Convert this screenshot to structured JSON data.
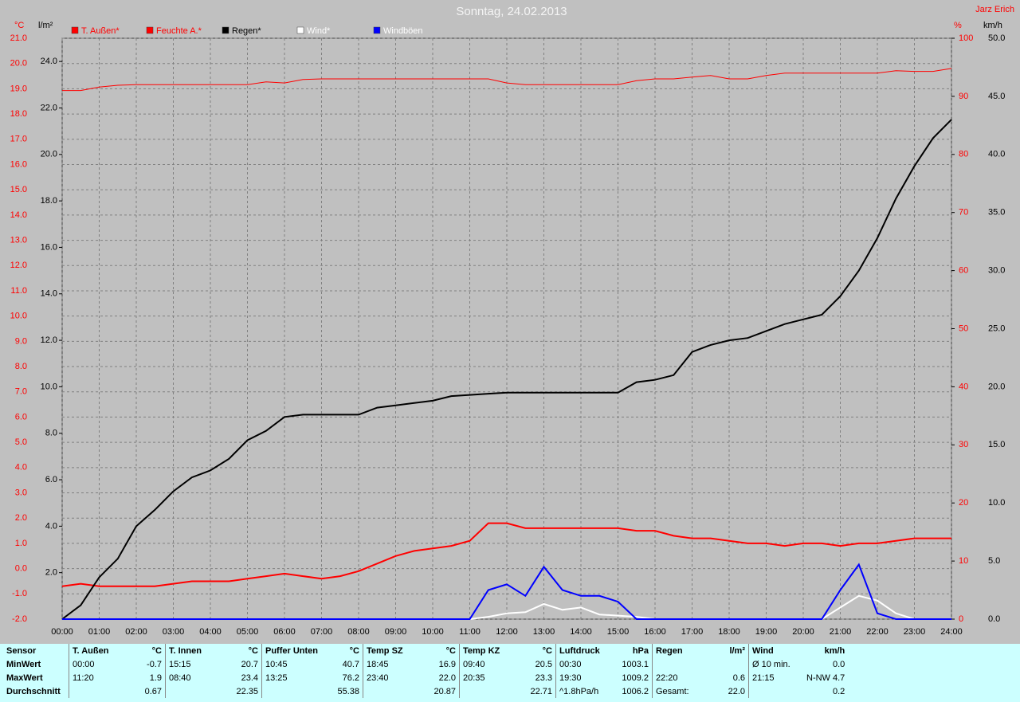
{
  "chart_data": {
    "type": "line",
    "title": "Sonntag, 24.02.2013",
    "author": "Jarz Erich",
    "ylabel": "°C",
    "y3label": "l/m²",
    "y2label": "%",
    "y4label": "km/h",
    "x": [
      0,
      0.5,
      1,
      1.5,
      2,
      2.5,
      3,
      3.5,
      4,
      4.5,
      5,
      5.5,
      6,
      6.5,
      7,
      7.5,
      8,
      8.5,
      9,
      9.5,
      10,
      10.5,
      11,
      11.5,
      12,
      12.5,
      13,
      13.5,
      14,
      14.5,
      15,
      15.5,
      16,
      16.5,
      17,
      17.5,
      18,
      18.5,
      19,
      19.5,
      20,
      20.5,
      21,
      21.5,
      22,
      22.5,
      23,
      23.5,
      24
    ],
    "xlim": [
      0,
      24
    ],
    "xticks": [
      {
        "value": 0,
        "label": "00:00"
      },
      {
        "value": 1,
        "label": "01:00"
      },
      {
        "value": 2,
        "label": "02:00"
      },
      {
        "value": 3,
        "label": "03:00"
      },
      {
        "value": 4,
        "label": "04:00"
      },
      {
        "value": 5,
        "label": "05:00"
      },
      {
        "value": 6,
        "label": "06:00"
      },
      {
        "value": 7,
        "label": "07:00"
      },
      {
        "value": 8,
        "label": "08:00"
      },
      {
        "value": 9,
        "label": "09:00"
      },
      {
        "value": 10,
        "label": "10:00"
      },
      {
        "value": 11,
        "label": "11:00"
      },
      {
        "value": 12,
        "label": "12:00"
      },
      {
        "value": 13,
        "label": "13:00"
      },
      {
        "value": 14,
        "label": "14:00"
      },
      {
        "value": 15,
        "label": "15:00"
      },
      {
        "value": 16,
        "label": "16:00"
      },
      {
        "value": 17,
        "label": "17:00"
      },
      {
        "value": 18,
        "label": "18:00"
      },
      {
        "value": 19,
        "label": "19:00"
      },
      {
        "value": 20,
        "label": "20:00"
      },
      {
        "value": 21,
        "label": "21:00"
      },
      {
        "value": 22,
        "label": "22:00"
      },
      {
        "value": 23,
        "label": "23:00"
      },
      {
        "value": 24,
        "label": "24:00"
      }
    ],
    "ylim": [
      -2,
      21
    ],
    "yticks": [
      {
        "value": -2,
        "label": "-2.0"
      },
      {
        "value": -1,
        "label": "-1.0"
      },
      {
        "value": 0,
        "label": "0.0"
      },
      {
        "value": 1,
        "label": "1.0"
      },
      {
        "value": 2,
        "label": "2.0"
      },
      {
        "value": 3,
        "label": "3.0"
      },
      {
        "value": 4,
        "label": "4.0"
      },
      {
        "value": 5,
        "label": "5.0"
      },
      {
        "value": 6,
        "label": "6.0"
      },
      {
        "value": 7,
        "label": "7.0"
      },
      {
        "value": 8,
        "label": "8.0"
      },
      {
        "value": 9,
        "label": "9.0"
      },
      {
        "value": 10,
        "label": "10.0"
      },
      {
        "value": 11,
        "label": "11.0"
      },
      {
        "value": 12,
        "label": "12.0"
      },
      {
        "value": 13,
        "label": "13.0"
      },
      {
        "value": 14,
        "label": "14.0"
      },
      {
        "value": 15,
        "label": "15.0"
      },
      {
        "value": 16,
        "label": "16.0"
      },
      {
        "value": 17,
        "label": "17.0"
      },
      {
        "value": 18,
        "label": "18.0"
      },
      {
        "value": 19,
        "label": "19.0"
      },
      {
        "value": 20,
        "label": "20.0"
      },
      {
        "value": 21,
        "label": "21.0"
      }
    ],
    "y3lim": [
      0,
      25
    ],
    "y3ticks": [
      {
        "value": 2,
        "label": "2.0"
      },
      {
        "value": 4,
        "label": "4.0"
      },
      {
        "value": 6,
        "label": "6.0"
      },
      {
        "value": 8,
        "label": "8.0"
      },
      {
        "value": 10,
        "label": "10.0"
      },
      {
        "value": 12,
        "label": "12.0"
      },
      {
        "value": 14,
        "label": "14.0"
      },
      {
        "value": 16,
        "label": "16.0"
      },
      {
        "value": 18,
        "label": "18.0"
      },
      {
        "value": 20,
        "label": "20.0"
      },
      {
        "value": 22,
        "label": "22.0"
      },
      {
        "value": 24,
        "label": "24.0"
      }
    ],
    "y2lim": [
      0,
      100
    ],
    "y2ticks": [
      0,
      10,
      20,
      30,
      40,
      50,
      60,
      70,
      80,
      90,
      100
    ],
    "y4lim": [
      0,
      50
    ],
    "y4ticks": [
      {
        "value": 0,
        "label": "0.0"
      },
      {
        "value": 5,
        "label": "5.0"
      },
      {
        "value": 10,
        "label": "10.0"
      },
      {
        "value": 15,
        "label": "15.0"
      },
      {
        "value": 20,
        "label": "20.0"
      },
      {
        "value": 25,
        "label": "25.0"
      },
      {
        "value": 30,
        "label": "30.0"
      },
      {
        "value": 35,
        "label": "35.0"
      },
      {
        "value": 40,
        "label": "40.0"
      },
      {
        "value": 45,
        "label": "45.0"
      },
      {
        "value": 50,
        "label": "50.0"
      }
    ],
    "grid": true,
    "series": [
      {
        "name": "T. Außen*",
        "color": "#ff0000",
        "axis": "y",
        "values": [
          -0.7,
          -0.6,
          -0.7,
          -0.7,
          -0.7,
          -0.7,
          -0.6,
          -0.5,
          -0.5,
          -0.5,
          -0.4,
          -0.3,
          -0.2,
          -0.3,
          -0.4,
          -0.3,
          -0.1,
          0.2,
          0.5,
          0.7,
          0.8,
          0.9,
          1.1,
          1.8,
          1.8,
          1.6,
          1.6,
          1.6,
          1.6,
          1.6,
          1.6,
          1.5,
          1.5,
          1.3,
          1.2,
          1.2,
          1.1,
          1.0,
          1.0,
          0.9,
          1.0,
          1.0,
          0.9,
          1.0,
          1.0,
          1.1,
          1.2,
          1.2,
          1.2
        ]
      },
      {
        "name": "Feuchte A.*",
        "color": "#ff0000",
        "axis": "y2",
        "values": [
          91,
          91,
          91.6,
          91.9,
          92,
          92,
          92,
          92,
          92,
          92,
          92,
          92.5,
          92.3,
          92.9,
          93,
          93,
          93,
          93,
          93,
          93,
          93,
          93,
          93,
          93,
          92.3,
          92,
          92,
          92,
          92,
          92,
          92,
          92.7,
          93,
          93,
          93.3,
          93.6,
          93,
          93,
          93.6,
          94,
          94,
          94,
          94,
          94,
          94,
          94.4,
          94.3,
          94.3,
          94.8
        ]
      },
      {
        "name": "Regen*",
        "color": "#000000",
        "axis": "y3",
        "values": [
          0,
          0.6,
          1.8,
          2.6,
          4.0,
          4.7,
          5.5,
          6.1,
          6.4,
          6.9,
          7.7,
          8.1,
          8.7,
          8.8,
          8.8,
          8.8,
          8.8,
          9.1,
          9.2,
          9.3,
          9.4,
          9.6,
          9.65,
          9.7,
          9.75,
          9.75,
          9.75,
          9.75,
          9.75,
          9.75,
          9.75,
          10.2,
          10.3,
          10.5,
          11.5,
          11.8,
          12.0,
          12.1,
          12.4,
          12.7,
          12.9,
          13.1,
          13.9,
          15.0,
          16.4,
          18.1,
          19.5,
          20.7,
          21.5
        ]
      },
      {
        "name": "Wind*",
        "color": "#ffffff",
        "axis": "y4",
        "values": [
          0,
          0,
          0,
          0,
          0,
          0,
          0,
          0,
          0,
          0,
          0,
          0,
          0,
          0,
          0,
          0,
          0,
          0,
          0,
          0,
          0,
          0,
          0,
          0.2,
          0.5,
          0.6,
          1.3,
          0.8,
          1.0,
          0.4,
          0.3,
          0.2,
          0,
          0,
          0,
          0,
          0,
          0,
          0,
          0,
          0,
          0,
          1.0,
          2.0,
          1.6,
          0.5,
          0,
          0,
          0
        ]
      },
      {
        "name": "Windböen",
        "color": "#0000ff",
        "axis": "y4",
        "values": [
          0,
          0,
          0,
          0,
          0,
          0,
          0,
          0,
          0,
          0,
          0,
          0,
          0,
          0,
          0,
          0,
          0,
          0,
          0,
          0,
          0,
          0,
          0,
          2.5,
          3.0,
          2.0,
          4.5,
          2.5,
          2.0,
          2.0,
          1.5,
          0,
          0,
          0,
          0,
          0,
          0,
          0,
          0,
          0,
          0,
          0,
          2.5,
          4.7,
          0.5,
          0,
          0,
          0,
          0
        ]
      }
    ]
  },
  "table": {
    "header": [
      "Sensor",
      "T. Außen",
      "°C",
      "T. Innen",
      "°C",
      "Puffer Unten",
      "°C",
      "Temp SZ",
      "°C",
      "Temp KZ",
      "°C",
      "Luftdruck",
      "hPa",
      "Regen",
      "l/m²",
      "Wind",
      "km/h"
    ],
    "rows": [
      [
        "MinWert",
        "00:00",
        "-0.7",
        "15:15",
        "20.7",
        "10:45",
        "40.7",
        "18:45",
        "16.9",
        "09:40",
        "20.5",
        "00:30",
        "1003.1",
        null,
        null,
        "Ø 10 min.",
        "0.0"
      ],
      [
        "MaxWert",
        "11:20",
        "1.9",
        "08:40",
        "23.4",
        "13:25",
        "76.2",
        "23:40",
        "22.0",
        "20:35",
        "23.3",
        "19:30",
        "1009.2",
        "22:20",
        "0.6",
        "21:15",
        "N-NW 4.7"
      ],
      [
        "Durchschnitt",
        null,
        "0.67",
        null,
        "22.35",
        null,
        "55.38",
        null,
        "20.87",
        null,
        "22.71",
        "^1.8hPa/h",
        "1006.2",
        "Gesamt:",
        "22.0",
        null,
        "0.2"
      ]
    ]
  }
}
